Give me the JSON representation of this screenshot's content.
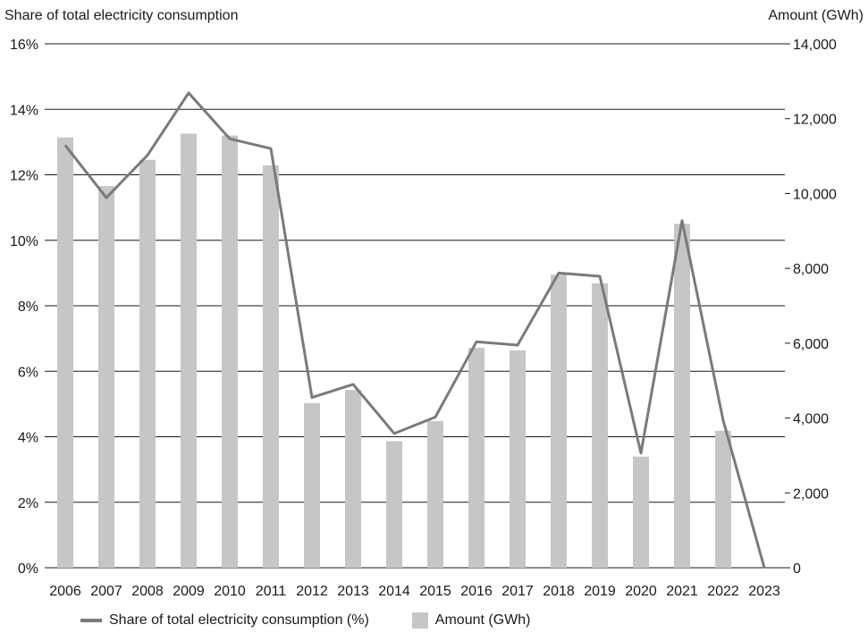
{
  "colors": {
    "bar": "#c6c6c6",
    "line": "#7a7a7a",
    "grid": "#1a1a1a",
    "text": "#1a1a1a"
  },
  "chart_data": {
    "type": "bar",
    "categories": [
      "2006",
      "2007",
      "2008",
      "2009",
      "2010",
      "2011",
      "2012",
      "2013",
      "2014",
      "2015",
      "2016",
      "2017",
      "2018",
      "2019",
      "2020",
      "2021",
      "2022",
      "2023"
    ],
    "series": [
      {
        "name": "Amount (GWh)",
        "type": "bar",
        "axis": "right",
        "values": [
          11500,
          10200,
          10900,
          11600,
          11550,
          10750,
          4400,
          4750,
          3380,
          3920,
          5880,
          5810,
          7830,
          7600,
          2970,
          9190,
          3660,
          0
        ]
      },
      {
        "name": "Share of total electricity consumption (%)",
        "type": "line",
        "axis": "left",
        "values": [
          12.9,
          11.3,
          12.6,
          14.5,
          13.1,
          12.8,
          5.2,
          5.6,
          4.1,
          4.6,
          6.9,
          6.8,
          9.0,
          8.9,
          3.5,
          10.6,
          4.5,
          0.0
        ]
      }
    ],
    "y_left": {
      "label": "Share of total electricity consumption",
      "ylim": [
        0,
        16
      ],
      "ticks": [
        "0%",
        "2%",
        "4%",
        "6%",
        "8%",
        "10%",
        "12%",
        "14%",
        "16%"
      ]
    },
    "y_right": {
      "label": "Amount (GWh)",
      "ylim": [
        0,
        14000
      ],
      "ticks": [
        "0",
        "2,000",
        "4,000",
        "6,000",
        "8,000",
        "10,000",
        "12,000",
        "14,000"
      ]
    },
    "grid": true,
    "legend": {
      "position": "bottom-left",
      "line_label": "Share of total electricity consumption (%)",
      "bar_label": "Amount (GWh)"
    }
  }
}
